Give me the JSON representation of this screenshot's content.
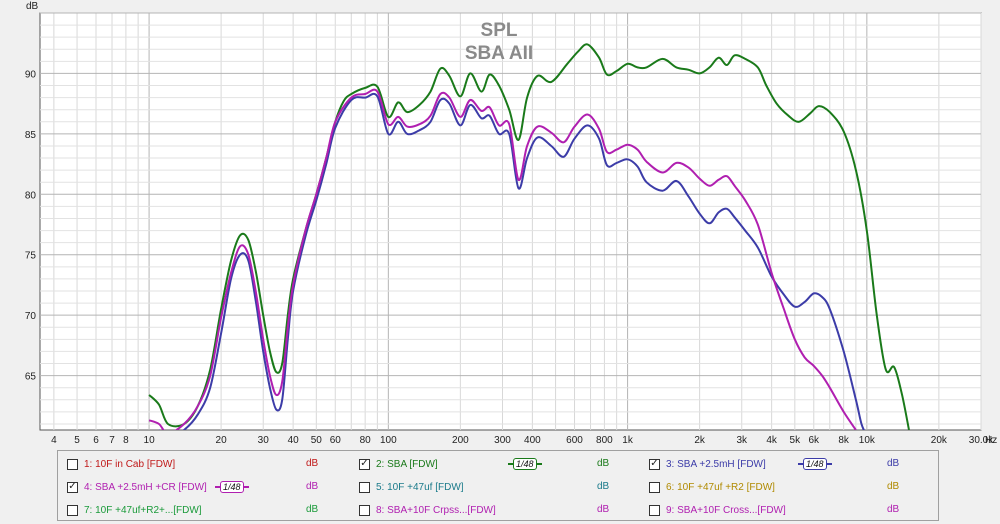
{
  "chart_data": {
    "type": "line",
    "title": "SPL",
    "subtitle": "SBA AII",
    "y_unit_label": "dB",
    "x_unit_label": "Hz",
    "x_scale": "log",
    "xlim": [
      3.5,
      30000
    ],
    "ylim": [
      60.5,
      95
    ],
    "grid": true,
    "y_ticks": [
      65,
      70,
      75,
      80,
      85,
      90
    ],
    "x_tick_labels": [
      {
        "v": 4,
        "t": "4"
      },
      {
        "v": 5,
        "t": "5"
      },
      {
        "v": 6,
        "t": "6"
      },
      {
        "v": 7,
        "t": "7"
      },
      {
        "v": 8,
        "t": "8"
      },
      {
        "v": 10,
        "t": "10"
      },
      {
        "v": 20,
        "t": "20"
      },
      {
        "v": 30,
        "t": "30"
      },
      {
        "v": 40,
        "t": "40"
      },
      {
        "v": 50,
        "t": "50"
      },
      {
        "v": 60,
        "t": "60"
      },
      {
        "v": 80,
        "t": "80"
      },
      {
        "v": 100,
        "t": "100"
      },
      {
        "v": 200,
        "t": "200"
      },
      {
        "v": 300,
        "t": "300"
      },
      {
        "v": 400,
        "t": "400"
      },
      {
        "v": 600,
        "t": "600"
      },
      {
        "v": 800,
        "t": "800"
      },
      {
        "v": 1000,
        "t": "1k"
      },
      {
        "v": 2000,
        "t": "2k"
      },
      {
        "v": 3000,
        "t": "3k"
      },
      {
        "v": 4000,
        "t": "4k"
      },
      {
        "v": 5000,
        "t": "5k"
      },
      {
        "v": 6000,
        "t": "6k"
      },
      {
        "v": 8000,
        "t": "8k"
      },
      {
        "v": 10000,
        "t": "10k"
      },
      {
        "v": 20000,
        "t": "20k"
      },
      {
        "v": 30000,
        "t": "30.0k"
      }
    ],
    "series": [
      {
        "name": "2: SBA [FDW]",
        "color": "#1a7a1a",
        "points": [
          [
            10,
            63.4
          ],
          [
            11,
            62.6
          ],
          [
            12,
            61.0
          ],
          [
            14,
            61.0
          ],
          [
            16,
            62.5
          ],
          [
            18,
            65.5
          ],
          [
            20,
            70.5
          ],
          [
            22,
            74.5
          ],
          [
            24,
            76.6
          ],
          [
            26,
            76.2
          ],
          [
            28,
            73.5
          ],
          [
            30,
            70
          ],
          [
            32,
            67
          ],
          [
            34,
            65.3
          ],
          [
            36,
            66
          ],
          [
            38,
            70
          ],
          [
            40,
            73
          ],
          [
            45,
            77
          ],
          [
            50,
            80
          ],
          [
            55,
            83
          ],
          [
            60,
            86
          ],
          [
            65,
            87.7
          ],
          [
            70,
            88.3
          ],
          [
            80,
            88.8
          ],
          [
            90,
            88.9
          ],
          [
            100,
            86.4
          ],
          [
            110,
            87.6
          ],
          [
            120,
            86.8
          ],
          [
            135,
            87.4
          ],
          [
            150,
            88.5
          ],
          [
            165,
            90.4
          ],
          [
            180,
            89.8
          ],
          [
            200,
            88.1
          ],
          [
            220,
            90.0
          ],
          [
            245,
            88.5
          ],
          [
            265,
            89.9
          ],
          [
            290,
            89.0
          ],
          [
            320,
            87.0
          ],
          [
            350,
            84.5
          ],
          [
            380,
            88.0
          ],
          [
            420,
            89.8
          ],
          [
            480,
            89.3
          ],
          [
            560,
            90.8
          ],
          [
            620,
            91.8
          ],
          [
            680,
            92.4
          ],
          [
            760,
            91.3
          ],
          [
            820,
            89.9
          ],
          [
            900,
            90.2
          ],
          [
            1000,
            90.8
          ],
          [
            1100,
            90.5
          ],
          [
            1200,
            90.5
          ],
          [
            1400,
            91.2
          ],
          [
            1600,
            90.5
          ],
          [
            1800,
            90.3
          ],
          [
            2000,
            90.0
          ],
          [
            2200,
            90.5
          ],
          [
            2400,
            91.3
          ],
          [
            2600,
            90.7
          ],
          [
            2800,
            91.5
          ],
          [
            3100,
            91.2
          ],
          [
            3500,
            90.5
          ],
          [
            3800,
            89.0
          ],
          [
            4200,
            87.5
          ],
          [
            4700,
            86.5
          ],
          [
            5200,
            86.0
          ],
          [
            5800,
            86.7
          ],
          [
            6300,
            87.3
          ],
          [
            7000,
            86.8
          ],
          [
            8000,
            85.2
          ],
          [
            9000,
            82.0
          ],
          [
            10000,
            77.0
          ],
          [
            11000,
            70.0
          ],
          [
            12000,
            65.5
          ],
          [
            13000,
            65.7
          ],
          [
            14000,
            63.5
          ],
          [
            15000,
            60.5
          ]
        ]
      },
      {
        "name": "3: SBA +2.5mH [FDW]",
        "color": "#3c3ca8",
        "points": [
          [
            11,
            60.5
          ],
          [
            12,
            59.8
          ],
          [
            14,
            60.5
          ],
          [
            16,
            61.8
          ],
          [
            18,
            64.0
          ],
          [
            20,
            68.5
          ],
          [
            22,
            73.0
          ],
          [
            24,
            75.0
          ],
          [
            26,
            74.5
          ],
          [
            28,
            71.0
          ],
          [
            30,
            67.0
          ],
          [
            32,
            64.0
          ],
          [
            34,
            62.2
          ],
          [
            36,
            63.0
          ],
          [
            38,
            68.0
          ],
          [
            40,
            72.0
          ],
          [
            45,
            76.5
          ],
          [
            50,
            79.5
          ],
          [
            55,
            82.5
          ],
          [
            60,
            85.5
          ],
          [
            70,
            87.8
          ],
          [
            80,
            88.0
          ],
          [
            90,
            88.1
          ],
          [
            100,
            85.0
          ],
          [
            110,
            86.0
          ],
          [
            120,
            85.0
          ],
          [
            135,
            85.3
          ],
          [
            150,
            86.0
          ],
          [
            165,
            87.8
          ],
          [
            180,
            87.5
          ],
          [
            200,
            85.7
          ],
          [
            220,
            87.4
          ],
          [
            245,
            86.3
          ],
          [
            265,
            86.5
          ],
          [
            290,
            85.0
          ],
          [
            320,
            85.0
          ],
          [
            350,
            80.5
          ],
          [
            380,
            83.0
          ],
          [
            420,
            84.7
          ],
          [
            480,
            84.0
          ],
          [
            540,
            83.1
          ],
          [
            600,
            84.6
          ],
          [
            680,
            85.7
          ],
          [
            760,
            84.6
          ],
          [
            820,
            82.4
          ],
          [
            900,
            82.6
          ],
          [
            1000,
            82.9
          ],
          [
            1100,
            82.3
          ],
          [
            1200,
            81.0
          ],
          [
            1400,
            80.3
          ],
          [
            1600,
            81.1
          ],
          [
            1800,
            79.8
          ],
          [
            2000,
            78.4
          ],
          [
            2200,
            77.6
          ],
          [
            2400,
            78.5
          ],
          [
            2600,
            78.8
          ],
          [
            2800,
            78.1
          ],
          [
            3100,
            77.0
          ],
          [
            3500,
            75.6
          ],
          [
            4000,
            73.2
          ],
          [
            4500,
            71.7
          ],
          [
            5000,
            70.7
          ],
          [
            5500,
            71.1
          ],
          [
            6000,
            71.8
          ],
          [
            6500,
            71.5
          ],
          [
            7000,
            70.5
          ],
          [
            8000,
            67.0
          ],
          [
            9000,
            63.0
          ],
          [
            9500,
            61.0
          ],
          [
            10000,
            60.0
          ]
        ]
      },
      {
        "name": "4: SBA +2.5mH +CR [FDW]",
        "color": "#b01fb0",
        "points": [
          [
            10,
            61.3
          ],
          [
            11,
            61.0
          ],
          [
            12,
            60.2
          ],
          [
            14,
            61.0
          ],
          [
            16,
            62.5
          ],
          [
            18,
            65.0
          ],
          [
            20,
            69.8
          ],
          [
            22,
            73.5
          ],
          [
            24,
            75.7
          ],
          [
            26,
            75.0
          ],
          [
            28,
            71.8
          ],
          [
            30,
            68.0
          ],
          [
            32,
            65.0
          ],
          [
            34,
            63.4
          ],
          [
            36,
            64.5
          ],
          [
            38,
            69.0
          ],
          [
            40,
            72.5
          ],
          [
            45,
            77.0
          ],
          [
            50,
            80.0
          ],
          [
            55,
            83.0
          ],
          [
            60,
            86.0
          ],
          [
            70,
            88.0
          ],
          [
            80,
            88.3
          ],
          [
            90,
            88.5
          ],
          [
            100,
            85.8
          ],
          [
            110,
            86.4
          ],
          [
            120,
            85.6
          ],
          [
            135,
            85.8
          ],
          [
            150,
            86.5
          ],
          [
            165,
            88.3
          ],
          [
            180,
            88.0
          ],
          [
            200,
            86.4
          ],
          [
            220,
            87.8
          ],
          [
            245,
            86.9
          ],
          [
            265,
            87.2
          ],
          [
            290,
            85.7
          ],
          [
            320,
            85.8
          ],
          [
            350,
            81.2
          ],
          [
            380,
            84.0
          ],
          [
            420,
            85.6
          ],
          [
            480,
            85.1
          ],
          [
            540,
            84.3
          ],
          [
            600,
            85.6
          ],
          [
            680,
            86.6
          ],
          [
            760,
            85.4
          ],
          [
            820,
            83.5
          ],
          [
            900,
            83.7
          ],
          [
            1000,
            84.1
          ],
          [
            1100,
            83.7
          ],
          [
            1200,
            82.7
          ],
          [
            1400,
            81.8
          ],
          [
            1600,
            82.6
          ],
          [
            1800,
            82.2
          ],
          [
            2000,
            81.3
          ],
          [
            2200,
            80.7
          ],
          [
            2400,
            81.2
          ],
          [
            2600,
            81.5
          ],
          [
            2800,
            80.7
          ],
          [
            3100,
            79.5
          ],
          [
            3500,
            77.5
          ],
          [
            4000,
            73.5
          ],
          [
            4500,
            70.5
          ],
          [
            5000,
            68.0
          ],
          [
            5500,
            66.5
          ],
          [
            6000,
            65.8
          ],
          [
            6500,
            65.0
          ],
          [
            7000,
            64.0
          ],
          [
            8000,
            62.0
          ],
          [
            9000,
            60.5
          ]
        ]
      }
    ]
  },
  "legend": [
    {
      "label": "1: 10F in Cab [FDW]",
      "checked": false,
      "color": "#c01818",
      "unit": "dB",
      "smoothing": ""
    },
    {
      "label": "2: SBA [FDW]",
      "checked": true,
      "color": "#1a7a1a",
      "unit": "dB",
      "smoothing": "1/48"
    },
    {
      "label": "3: SBA +2.5mH [FDW]",
      "checked": true,
      "color": "#3c3ca8",
      "unit": "dB",
      "smoothing": "1/48"
    },
    {
      "label": "4: SBA +2.5mH +CR [FDW]",
      "checked": true,
      "color": "#b01fb0",
      "unit": "dB",
      "smoothing": "1/48"
    },
    {
      "label": "5: 10F +47uf [FDW]",
      "checked": false,
      "color": "#1a7a8a",
      "unit": "dB",
      "smoothing": ""
    },
    {
      "label": "6: 10F +47uf +R2 [FDW]",
      "checked": false,
      "color": "#b08a00",
      "unit": "dB",
      "smoothing": ""
    },
    {
      "label": "7: 10F +47uf+R2+...[FDW]",
      "checked": false,
      "color": "#1a9a3a",
      "unit": "dB",
      "smoothing": ""
    },
    {
      "label": "8: SBA+10F Crpss...[FDW]",
      "checked": false,
      "color": "#b01fb0",
      "unit": "dB",
      "smoothing": ""
    },
    {
      "label": "9: SBA+10F Cross...[FDW]",
      "checked": false,
      "color": "#b01fb0",
      "unit": "dB",
      "smoothing": ""
    }
  ]
}
